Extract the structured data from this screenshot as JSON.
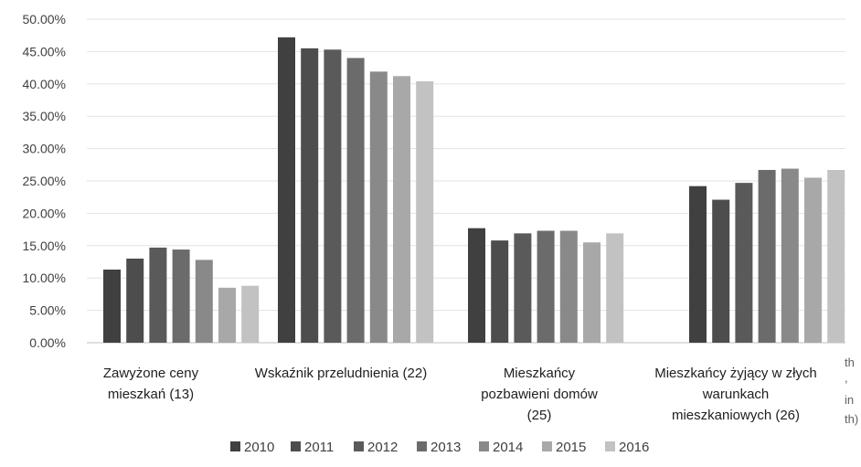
{
  "chart_data": {
    "type": "bar",
    "categories": [
      [
        "Zawyżone ceny",
        "mieszkań (13)"
      ],
      [
        "Wskaźnik przeludnienia (22)"
      ],
      [
        "Mieszkańcy",
        "pozbawieni domów",
        "(25)"
      ],
      [
        "Mieszkańcy żyjący w złych",
        "warunkach",
        "mieszkaniowych (26)"
      ]
    ],
    "series": [
      {
        "name": "2010",
        "color": "#404040",
        "values": [
          11.3,
          47.2,
          17.7,
          24.2
        ]
      },
      {
        "name": "2011",
        "color": "#4d4d4d",
        "values": [
          13.0,
          45.5,
          15.8,
          22.1
        ]
      },
      {
        "name": "2012",
        "color": "#5a5a5a",
        "values": [
          14.7,
          45.3,
          16.9,
          24.7
        ]
      },
      {
        "name": "2013",
        "color": "#6b6b6b",
        "values": [
          14.4,
          44.0,
          17.3,
          26.7
        ]
      },
      {
        "name": "2014",
        "color": "#898989",
        "values": [
          12.8,
          41.9,
          17.3,
          26.9
        ]
      },
      {
        "name": "2015",
        "color": "#a8a8a8",
        "values": [
          8.5,
          41.2,
          15.5,
          25.5
        ]
      },
      {
        "name": "2016",
        "color": "#c2c2c2",
        "values": [
          8.8,
          40.4,
          16.9,
          26.7
        ]
      }
    ],
    "ylim": [
      0,
      50
    ],
    "yticks": [
      "0.00%",
      "5.00%",
      "10.00%",
      "15.00%",
      "20.00%",
      "25.00%",
      "30.00%",
      "35.00%",
      "40.00%",
      "45.00%",
      "50.00%"
    ],
    "legend_position": "bottom",
    "grid": true,
    "clipped_text": [
      "th",
      ",",
      "in",
      "th)"
    ]
  }
}
